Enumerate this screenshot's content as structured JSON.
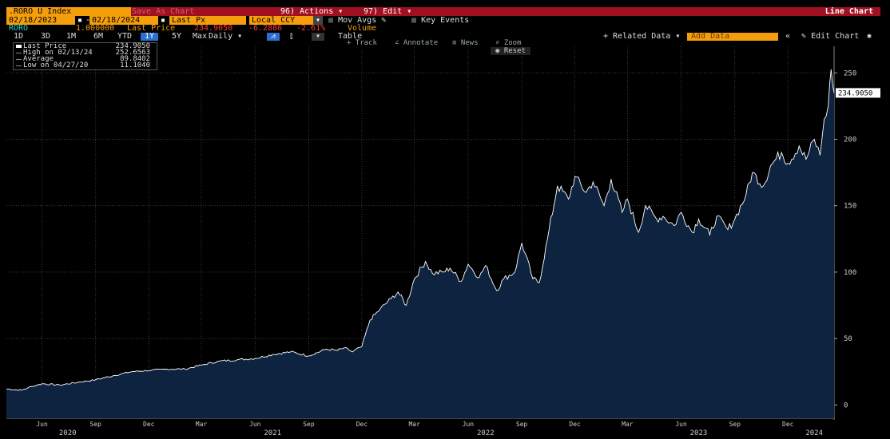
{
  "header": {
    "ticker": ".RORO U Index",
    "chart_menu": "Save As   Chart",
    "actions": "96) Actions",
    "edit": "97) Edit",
    "chart_type": "Line Chart"
  },
  "controls": {
    "start_date": "02/18/2023",
    "end_date": "02/18/2024",
    "price_type": "Last Px",
    "currency": "Local CCY",
    "mov_avgs": "Mov Avgs",
    "key_events": "Key Events"
  },
  "security_row": {
    "name": "RORO",
    "factor": "1.000000",
    "last_price_label": "Last Price",
    "last_price": "234.9050",
    "change": "-6.2886",
    "change_pct": "-2.61%",
    "volume_label": "Volume"
  },
  "toolbar": {
    "ranges": [
      "1D",
      "3D",
      "1M",
      "6M",
      "YTD",
      "1Y",
      "5Y",
      "Max"
    ],
    "selected_range": "1Y",
    "frequency": "Daily",
    "table": "Table",
    "related_data": "+ Related Data",
    "add_data": "Add Data",
    "edit_chart": "Edit Chart"
  },
  "chart_tools": {
    "track": "Track",
    "annotate": "Annotate",
    "news": "News",
    "zoom": "Zoom",
    "reset": "Reset"
  },
  "legend": [
    {
      "label": "Last Price",
      "value": "234.9050"
    },
    {
      "label": "High on 02/13/24",
      "value": "252.6563"
    },
    {
      "label": "Average",
      "value": "89.8402"
    },
    {
      "label": "Low on 04/27/20",
      "value": "11.1040"
    }
  ],
  "colors": {
    "background": "#000000",
    "area_fill": "#0e2340",
    "line": "#ffffff",
    "header_bar": "#a01020",
    "accent_orange": "#f59e0b",
    "selected_blue": "#2b6fd0",
    "change_red": "#ff3b3b",
    "volume_orange": "#f59e0b"
  },
  "chart_data": {
    "type": "area",
    "y_ticks": [
      0,
      50,
      100,
      150,
      200,
      250
    ],
    "ylim": [
      -10,
      270
    ],
    "x_range": [
      "2020-04-01",
      "2024-02-18"
    ],
    "x_month_ticks": [
      {
        "label": "Jun",
        "date": "2020-06-01"
      },
      {
        "label": "Sep",
        "date": "2020-09-01"
      },
      {
        "label": "Dec",
        "date": "2020-12-01"
      },
      {
        "label": "Mar",
        "date": "2021-03-01"
      },
      {
        "label": "Jun",
        "date": "2021-06-01"
      },
      {
        "label": "Sep",
        "date": "2021-09-01"
      },
      {
        "label": "Dec",
        "date": "2021-12-01"
      },
      {
        "label": "Mar",
        "date": "2022-03-01"
      },
      {
        "label": "Jun",
        "date": "2022-06-01"
      },
      {
        "label": "Sep",
        "date": "2022-09-01"
      },
      {
        "label": "Dec",
        "date": "2022-12-01"
      },
      {
        "label": "Mar",
        "date": "2023-03-01"
      },
      {
        "label": "Jun",
        "date": "2023-06-01"
      },
      {
        "label": "Sep",
        "date": "2023-09-01"
      },
      {
        "label": "Dec",
        "date": "2023-12-01"
      }
    ],
    "x_year_ticks": [
      {
        "label": "2020",
        "date": "2020-07-15"
      },
      {
        "label": "2021",
        "date": "2021-07-01"
      },
      {
        "label": "2022",
        "date": "2022-07-01"
      },
      {
        "label": "2023",
        "date": "2023-07-01"
      },
      {
        "label": "2024",
        "date": "2024-01-15"
      }
    ],
    "last_value_label": "234.9050",
    "last_value": 234.905,
    "grid": true,
    "series": [
      {
        "name": "Last Price",
        "x": [
          "2020-04-01",
          "2020-04-27",
          "2020-05-15",
          "2020-06-01",
          "2020-07-01",
          "2020-08-01",
          "2020-09-01",
          "2020-10-01",
          "2020-11-01",
          "2020-12-01",
          "2021-01-01",
          "2021-02-01",
          "2021-03-01",
          "2021-04-01",
          "2021-05-01",
          "2021-06-01",
          "2021-07-01",
          "2021-08-01",
          "2021-09-01",
          "2021-10-01",
          "2021-10-20",
          "2021-11-01",
          "2021-11-15",
          "2021-12-01",
          "2021-12-15",
          "2022-01-01",
          "2022-01-20",
          "2022-02-01",
          "2022-02-15",
          "2022-03-01",
          "2022-03-20",
          "2022-04-01",
          "2022-04-20",
          "2022-05-01",
          "2022-05-20",
          "2022-06-01",
          "2022-06-20",
          "2022-07-01",
          "2022-07-20",
          "2022-08-01",
          "2022-08-20",
          "2022-09-01",
          "2022-09-20",
          "2022-10-01",
          "2022-10-15",
          "2022-11-01",
          "2022-11-20",
          "2022-12-01",
          "2022-12-20",
          "2023-01-01",
          "2023-01-20",
          "2023-02-01",
          "2023-02-20",
          "2023-03-01",
          "2023-03-20",
          "2023-04-01",
          "2023-04-20",
          "2023-05-01",
          "2023-05-20",
          "2023-06-01",
          "2023-06-20",
          "2023-07-01",
          "2023-07-20",
          "2023-08-01",
          "2023-08-20",
          "2023-09-01",
          "2023-09-20",
          "2023-10-01",
          "2023-10-20",
          "2023-11-01",
          "2023-11-20",
          "2023-12-01",
          "2023-12-20",
          "2024-01-01",
          "2024-01-15",
          "2024-01-25",
          "2024-02-01",
          "2024-02-08",
          "2024-02-13",
          "2024-02-18"
        ],
        "values": [
          12,
          11.1,
          14,
          16,
          15,
          17,
          19,
          22,
          25,
          26,
          27,
          27,
          30,
          33,
          34,
          35,
          38,
          40,
          37,
          42,
          41,
          43,
          40,
          44,
          64,
          72,
          80,
          85,
          75,
          95,
          108,
          99,
          100,
          103,
          93,
          106,
          96,
          105,
          86,
          95,
          100,
          122,
          95,
          92,
          125,
          165,
          155,
          172,
          160,
          168,
          150,
          170,
          145,
          155,
          130,
          150,
          140,
          142,
          135,
          145,
          130,
          140,
          128,
          142,
          132,
          140,
          158,
          175,
          165,
          180,
          190,
          182,
          195,
          185,
          200,
          188,
          215,
          225,
          252.6563,
          234.905
        ]
      }
    ]
  }
}
